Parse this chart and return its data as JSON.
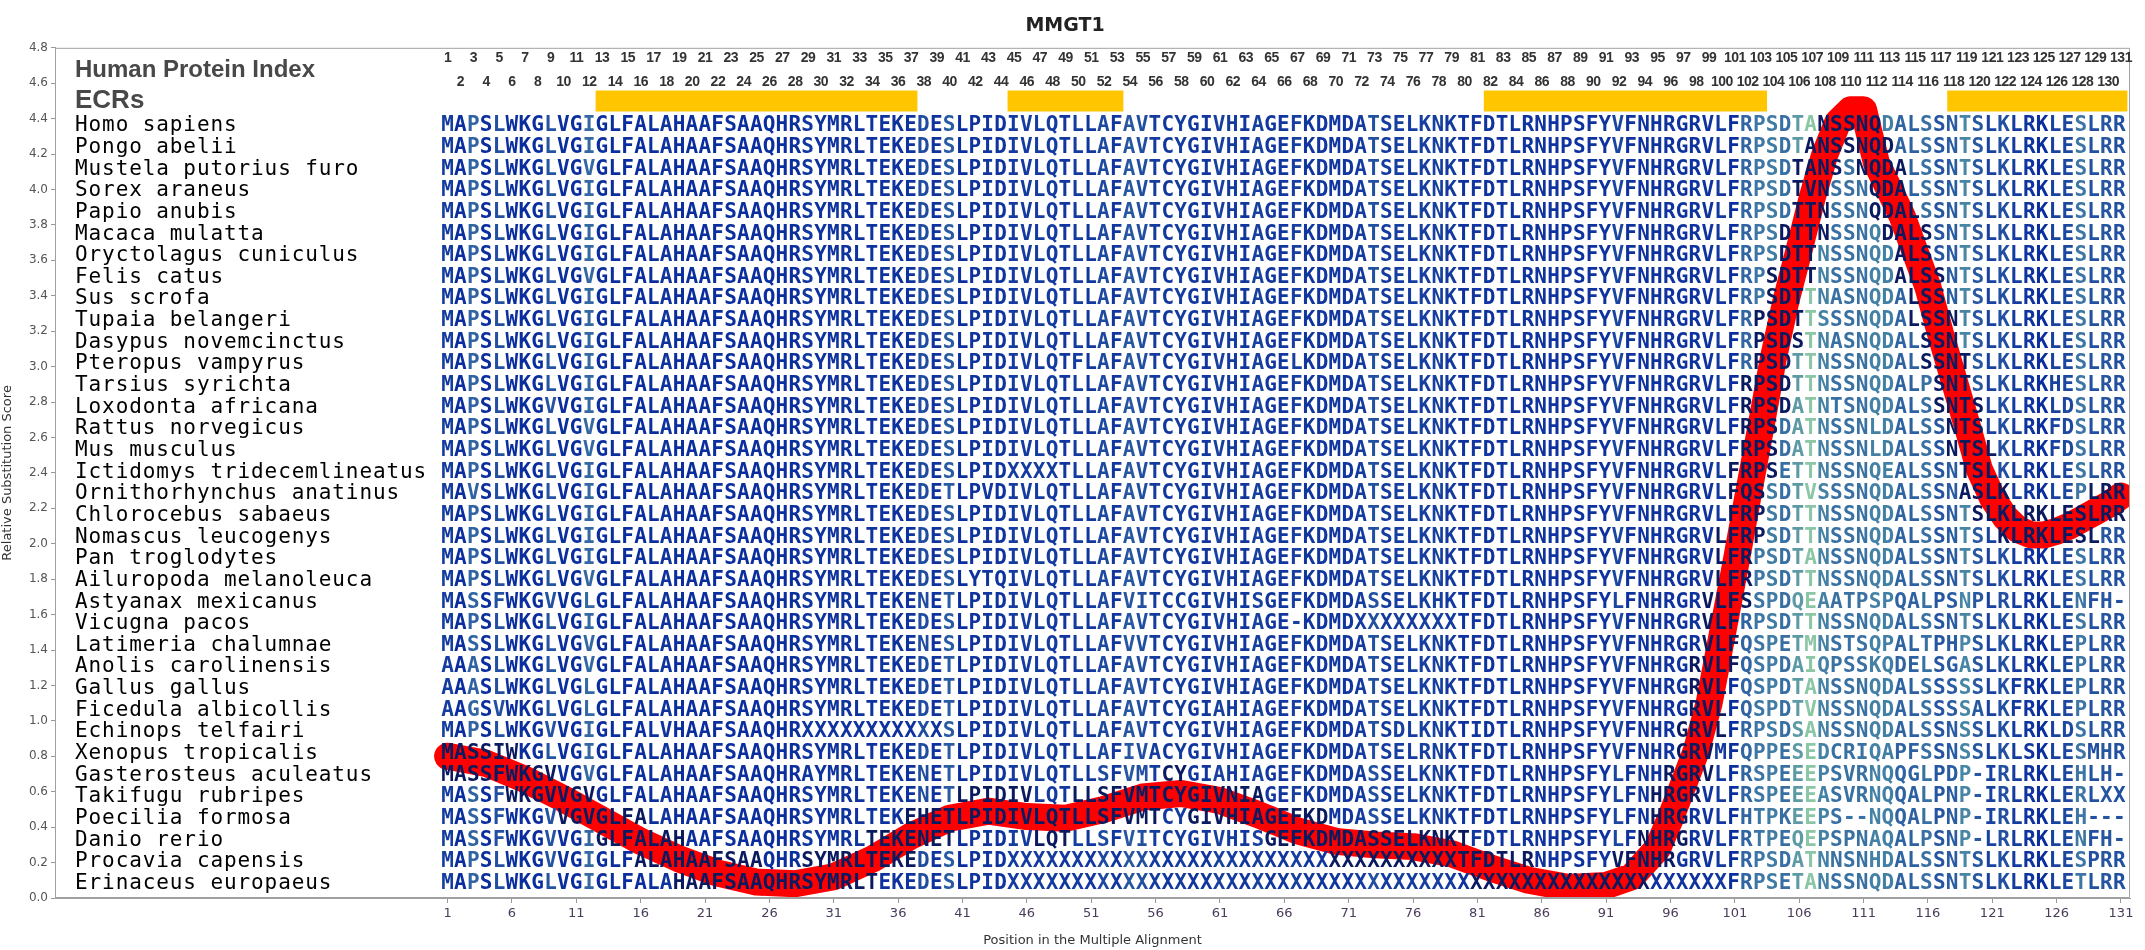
{
  "chart_data": {
    "type": "line",
    "title": "MMGT1",
    "xlabel": "Position in the Multiple Alignment",
    "ylabel": "Relative Substitution Score",
    "x2label": "Human Protein Index",
    "series": [
      {
        "color": "#ff0000",
        "x": [
          1,
          4,
          7,
          10,
          13,
          16,
          19,
          22,
          25,
          28,
          31,
          34,
          37,
          40,
          43,
          46,
          49,
          52,
          55,
          58,
          61,
          64,
          67,
          70,
          73,
          76,
          79,
          82,
          85,
          88,
          91,
          93,
          95,
          96,
          97,
          98,
          99,
          100,
          101,
          102,
          103,
          104,
          105,
          106,
          107,
          108,
          109,
          110,
          111,
          112,
          113,
          114,
          115,
          116,
          117,
          118,
          119,
          120,
          121,
          122,
          123,
          124,
          125,
          126,
          127,
          128,
          129,
          130,
          131
        ],
        "values": [
          0.8,
          0.76,
          0.67,
          0.56,
          0.44,
          0.32,
          0.22,
          0.14,
          0.09,
          0.08,
          0.12,
          0.22,
          0.35,
          0.45,
          0.49,
          0.46,
          0.45,
          0.5,
          0.57,
          0.59,
          0.55,
          0.47,
          0.38,
          0.32,
          0.3,
          0.29,
          0.25,
          0.17,
          0.1,
          0.06,
          0.07,
          0.12,
          0.28,
          0.45,
          0.64,
          0.83,
          1.1,
          1.48,
          1.86,
          2.26,
          2.65,
          3.05,
          3.38,
          3.66,
          3.95,
          4.2,
          4.38,
          4.45,
          4.45,
          4.15,
          4.0,
          3.85,
          3.65,
          3.45,
          3.18,
          2.93,
          2.68,
          2.42,
          2.26,
          2.15,
          2.08,
          2.05,
          2.05,
          2.07,
          2.1,
          2.14,
          2.18,
          2.22,
          2.27
        ]
      },
      {
        "color": "#ffc600",
        "x": [
          12.5,
          37.5,
          41,
          44.5,
          53.5,
          67.5,
          81.5,
          103.5,
          110.5,
          117.5,
          131.5
        ],
        "values": [
          4.5,
          4.5,
          null,
          4.5,
          4.5,
          null,
          4.5,
          4.5,
          null,
          4.5,
          4.5
        ]
      }
    ],
    "marker": "none",
    "line_style": "solid",
    "xlim": [
      -29.5,
      131.7
    ],
    "xticks": [
      1,
      6,
      11,
      16,
      21,
      26,
      31,
      36,
      41,
      46,
      51,
      56,
      61,
      66,
      71,
      76,
      81,
      86,
      91,
      96,
      101,
      106,
      111,
      116,
      121,
      126,
      131
    ],
    "ylim": [
      0,
      4.8
    ],
    "yticks": [
      {
        "value": 0,
        "label": "0.0"
      },
      0.2,
      0.4,
      0.6,
      0.8,
      {
        "value": 1,
        "label": "1.0"
      },
      1.2,
      1.4,
      1.6,
      1.8,
      {
        "value": 2,
        "label": "2.0"
      },
      2.2,
      2.4,
      2.6,
      2.8,
      {
        "value": 3,
        "label": "3.0"
      },
      3.2,
      3.4,
      3.6,
      3.8,
      {
        "value": 4,
        "label": "4.0"
      },
      4.2,
      4.4,
      4.6,
      4.8
    ],
    "x2lim": [
      -29.5,
      131.7
    ],
    "x2ticks": [
      1,
      3,
      5,
      7,
      9,
      11,
      13,
      15,
      17,
      19,
      21,
      23,
      25,
      27,
      29,
      31,
      33,
      35,
      37,
      39,
      41,
      43,
      45,
      47,
      49,
      51,
      53,
      55,
      57,
      59,
      61,
      63,
      65,
      67,
      69,
      71,
      73,
      75,
      77,
      79,
      81,
      83,
      85,
      87,
      89,
      91,
      93,
      95,
      97,
      99,
      101,
      103,
      105,
      107,
      109,
      111,
      113,
      115,
      117,
      119,
      121,
      123,
      125,
      127,
      129,
      131
    ],
    "annotations": [
      "2 4 6 8 10 12 14 16 18 20 22 24 26 28 30 32 34 36 38 40 42 44 46 48 50 52 54 56 58 60 62 64 66 68 70 72 74 76 78 80 82 84 86 88 90 92 94 96 98 100 102 104 106 108 110 112 114 116 118 120 122 124 126 128 130",
      "ECRs",
      "Homo sapiens",
      "MAPSLWKGLVGIGLFALAHAAFSAAQHRSYMRLTEKEDESLPIDIVLQTLLAFAVTCYGIVHIAGEFKDMDATSELKNKTFDTLRNHPSFYVFNHRGRVLFRPSDTANSSNQDALSSNTSLKLRKLESLRR",
      "Pongo abelii",
      "MAPSLWKGLVGIGLFALAHAAFSAAQHRSYMRLTEKEDESLPIDIVLQTLLAFAVTCYGIVHIAGEFKDMDATSELKNKTFDTLRNHPSFYVFNHRGRVLFRPSDTANSSNQDALSSNTSLKLRKLESLRR",
      "Mustela putorius furo",
      "MAPSLWKGLVGVGLFALAHAAFSAAQHRSYMRLTEKEDESLPIDIVLQTLLAFAVTCYGIVHIAGEFKDMDATSELKNKTFDTLRNHPSFYVFNHRGRVLFRPSDTANSSNQDALSSNTSLKLRKLESLRR",
      "Sorex araneus",
      "MAPSLWKGLVGIGLFALAHAAFSAAQHRSYMRLTEKEDESLPIDIVLQTLLAFAVTCYGIVHIAGEFKDMDATSELKNKTFDTLRNHPSFYVFNHRGRVLFRPSDTVNSSNQDALSSNTSLKLRKLESLRR",
      "Papio anubis",
      "MAPSLWKGLVGIGLFALAHAAFSAAQHRSYMRLTEKEDESLPIDIVLQTLLAFAVTCYGIVHIAGEFKDMDATSELKNKTFDTLRNHPSFYVFNHRGRVLFRPSDTTNSSNQDALSSNTSLKLRKLESLRR",
      "Macaca mulatta",
      "MAPSLWKGLVGIGLFALAHAAFSAAQHRSYMRLTEKEDESLPIDIVLQTLLAFAVTCYGIVHIAGEFKDMDATSELKNKTFDTLRNHPSFYVFNHRGRVLFRPSDTTNSSNQDALSSNTSLKLRKLESLRR",
      "Oryctolagus cuniculus",
      "MAPSLWKGLVGIGLFALAHAAFSAAQHRSYMRLTEKEDESLPIDIVLQTLLAFAVTCYGIVHIAGEFKDMDATSELKNKTFDTLRNHPSFYVFNHRGRVLFRPSDTTNSSNQDALSSNTSLKLRKLESLRR",
      "Felis catus",
      "MAPSLWKGLVGVGLFALAHAAFSAAQHRSYMRLTEKEDESLPIDIVLQTLLAFAVTCYGIVHIAGEFKDMDATSELKNKTFDTLRNHPSFYVFNHRGRVLFRPSDTTNSSNQDALSSNTSLKLRKLESLRR",
      "Sus scrofa",
      "MAPSLWKGLVGIGLFALAHAAFSAAQHRSYMRLTEKEDESLPIDIVLQTLLAFAVTCYGIVHIAGEFKDMDATSELKNKTFDTLRNHPSFYVFNHRGRVLFRPSDTTNASNQDALSSNTSLKLRKLESLRR",
      "Tupaia belangeri",
      "MAPSLWKGLVGIGLFALAHAAFSAAQHRSYMRLTEKEDESLPIDIVLQTLLAFAVTCYGIVHIAGEFKDMDATSELKNKTFDTLRNHPSFYVFNHRGRVLFRPSDTTSSSNQDALSSNTSLKLRKLESLRR",
      "Dasypus novemcinctus",
      "MAPSLWKGLVGIGLFALAHAAFSAAQHRSYMRLTEKEDESLPIDIVLQTLLAFAVTCYGIVHIAGEFKDMDATSELKNKTFDTLRNHPSFYVFNHRGRVLFRPSDSTNASNQDALSSNTSLKLRKLESLRR",
      "Pteropus vampyrus",
      "MAPSLWKGLVGIGLFALAHAAFSAAQHRSYMRLTEKEDESLPIDIVLQTFLAFAVTCYGIVHIAGELKDMDATSELKNKTFDTLRNHPSFYVFNHRGRVLFRPSDTTNSSNQDALSSNTSLKLRKLESLRR",
      "Tarsius syrichta",
      "MAPSLWKGLVGIGLFALAHAAFSAAQHRSYMRLTEKEDESLPIDIVLQTLLAFAVTCYGIVHIAGEFKDMDATSELKNKTFDTLRNHPSFYVFNHRGRVLFRPSDTTNSSNQDALPSNTSLKLRKHESLRR",
      "Loxodonta africana",
      "MAPSLWKGVVGIGLFALAHAAFSAAQHRSYMRLTEKEDESLPIDIVLQTLLAFAVTCYGIVHIAGEFKDMDATSELKNKTFDTLRNHPSFYVFNHRGRVLFRPSDATNTSNQDALSSNTSLKLRKLDSLRR",
      "Rattus norvegicus",
      "MAPSLWKGLVGVGLFALAHAAFSAAQHRSYMRLTEKEDESLPIDIVLQTLLAFAVTCYGIVHIAGEFKDMDATSELKNKTFDTLRNHPSFYVFNHRGRVLFRPSDATNSSNLDALSSNTSLKLRKFDSLRR",
      "Mus musculus",
      "MAPSLWKGLVGVGLFALAHAAFSAAQHRSYMRLTEKEDESLPIDIVLQTLLAFAVTCYGIVHIAGEFKDMDATSELKNKTFDTLRNHPSFYVFNHRGRVLFRPSDATNSSNLDALSSNTSLKLRKFDSLRR",
      "Ictidomys tridecemlineatus",
      "MAPSLWKGLVGIGLFALAHAAFSAAQHRSYMRLTEKEDESLPIDXXXXTLLAFAVTCYGIVHIAGEFKDMDATSELKNKTFDTLRNHPSFYVFNHRGRVLFRPSETTNSSNQEALSSNTSLKLRKLESLRR",
      "Ornithorhynchus anatinus",
      "MAVSLWKGLVGIGLFALAHAAFSAAQHRSYMRLTEKEDETLPVDIVLQTLLAFAVTCYGIVHIAGEFKDMDATSELKNKTFDTLRNHPSFYVFNHRGRVLFQSSDTVSSSNQDALSSNASLKLRKLEPLRR",
      "Chlorocebus sabaeus",
      "MAPSLWKGLVGIGLFALAHAAFSAAQHRSYMRLTEKEDESLPIDIVLQTLLAFAVTCYGIVHIAGEFKDMDATSELKNKTFDTLRNHPSFYVFNHRGRVLFRPSDTTNSSNQDALSSNTSLKLRKLESLRR",
      "Nomascus leucogenys",
      "MAPSLWKGLVGIGLFALAHAAFSAAQHRSYMRLTEKEDESLPIDIVLQTLLAFAVTCYGIVHIAGEFKDMDATSELKNKTFDTLRNHPSFYVFNHRGRVLFRPSDTTNSSNQDALSSNTSLKLRKLESLRR",
      "Pan troglodytes",
      "MAPSLWKGLVGIGLFALAHAAFSAAQHRSYMRLTEKEDESLPIDIVLQTLLAFAVTCYGIVHIAGEFKDMDATSELKNKTFDTLRNHPSFYVFNHRGRVLFRPSDTANSSNQDALSSNTSLKLRKLESLRR",
      "Ailuropoda melanoleuca",
      "MAPSLWKGLVGVGLFALAHAAFSAAQHRSYMRLTEKEDESLYTQIVLQTLLAFAVTCYGIVHIAGEFKDMDATSELKNKTFDTLRNHPSFYVFNHRGRVLFRPSDTTNSSNQDALSSNTSLKLRKLESLRR",
      "Astyanax mexicanus",
      "MASSFWKGVVGLGLFALAHAAFSAAQHRSYMRLTEKENETLPIDIVLQTLLAFVITCCGIVHISGEFKDMDASSELKHKTFDTLRNHPSFYLFNHRGRVLFSSPDQEAATPSPQALPSNPLRLRKLENFH-",
      "Vicugna pacos",
      "MAPSLWKGLVGIGLFALAHAAFSAAQHRSYMRLTEKEDESLPIDIVLQTLLAFAVTCYGIVHIAGE-KDMDXXXXXXXXTFDTLRNHPSFYVFNHRGRVLFRPSDTTNSSNQDALSSNTSLKLRKLESLRR",
      "Latimeria chalumnae",
      "MASSLWKGLVGVGLFALAHAAFSAAQHRSYMRLTEKENESLPIDIVLQTLLAFVVTCYGIVHIAGEFKDMDATSELKNKTFDTLRNHPSFYVFNHRGRVLFQSPETMNSTSQPALTPHPSLKLRKLEPLRR",
      "Anolis carolinensis",
      "AAASLWKGLVGVGLFALAHAAFSAAQHRSYMRLTEKEDETLPIDIVLQTLLAFAVTCYGIVHIAGEFKDMDATSELKNKTFDTLRNHPSFYVFNHRGRVLFQSPDAIQPSSKQDELSGASLKLRKLEPLRR",
      "Gallus gallus",
      "AAASLWKGLVGLGLFALAHAAFSAAQHRSYMRLTEKEDETLPIDIVLQTLLAFAVTCYGIVHIAGEFKDMDATSELKNKTFDTLRNHPSFYVFNHRGRVLFQSPDTANSSNQDALSSSSSLKFRKLEPLRR",
      "Ficedula albicollis",
      "AAGSVWKGLVGLGLFALAHAAFSAAQHRSYMRLTEKEDETLPIDIVLQTLLAFAVTCYGIAHIAGEFKDMDATSELKNKTFDTLRNHPSFYVFNHRGRVLFQSPDTVNSSNQDALSSSSALKFRKLEPLRR",
      "Echinops telfairi",
      "MAPSLWKGVVGIGLFALVHAAFSAAQHRXXXXXXXXXXXSLPIDIVLQTLLAFAVTCYGIVHIAGEFKDMDATSDLKNKTIDTLRNHPSFYVFNHRGRVLFRPSDSANSSNQDALSSNSSLKLRKLDSLRR",
      "Xenopus tropicalis",
      "MASSIWKGLVGIGLFALAHAAFSAAQHRSYMRLTEKEDETLPIDIVLQTLLAFIVACYGIVHIAGEFKDMDATSELRNKTFDTLRNHPSFYVFNHRGRVMFQPPESEDCRIQAPFSSNSSLKLSKLESMHR",
      "Gasterosteus aculeatus",
      "MASSFWKGVVGVGLFALAHAAFSAAQHRAYMRLTEKENETLPIDIVLQTLLSFVMTCYGIAHIAGEFKDMDASSELKNKTFDTLRNHPSFYLFNHRGRVLFRSPEEEPSVRNQQGLPDP-IRLRKLEHLH-",
      "Takifugu rubripes",
      "MASSFWKGVVGVGLFALAHAAFSAAQHRSYMRLTEKENETLPIDIVLQTLLSFVMTCYGIVNIAGEFKDMDASSELKNKTFDTLRNHPSFYLFNHRGRVLFRSPEEEASVRNQQALPNP-IRLRKLERLXX",
      "Poecilia formosa",
      "MASSFWKGVVGVGLFALAHAAFSAAQHRSYMRLTEKEHETLPIDIVLQTLLSFVMTCYGIVHIAGEFKDMDASSELKNKTFDTLRNHPSFYLFNHRGRVLFHTPKEEPS--NQQALPNP-IRLRKLEH---",
      "Danio rerio",
      "MASSFWKGVVGIGLFALAHAAFSAAQHRSYMRLTEKENETLPIDIVLQTLLSFVITCYGIVHISGEFKDMDASSELKNKTFDTLRNHPSFYLFNHRGRVLFRTPEQEPSPNAQALPSNP-LRLRKLENFH-",
      "Procavia capensis",
      "MAPSLWKGVVGIGLFALAHAAFSAAQHRSYMRLTEKEDESLPIDXXXXXXXXXXXXXXXXXXXXXXXXXXXXXXXXXXXTFDTLRNHPSFYVFNHRGRVLFRPSDATNNSNHDALSSNTSLKLRKLESPRR",
      "Erinaceus europaeus",
      "MAPSLWKGLVGIGLFALAHAAFSAAQHRSYMRLTEKEDESLPIDXXXXXXXXXXXXXXXXXXXXXXXXXXXXXXXXXXXXXXXXXXXXXXXXXXXXXXXXFRPSETANSSNQDALSSNTSLKLRKLETLRR"
    ]
  }
}
